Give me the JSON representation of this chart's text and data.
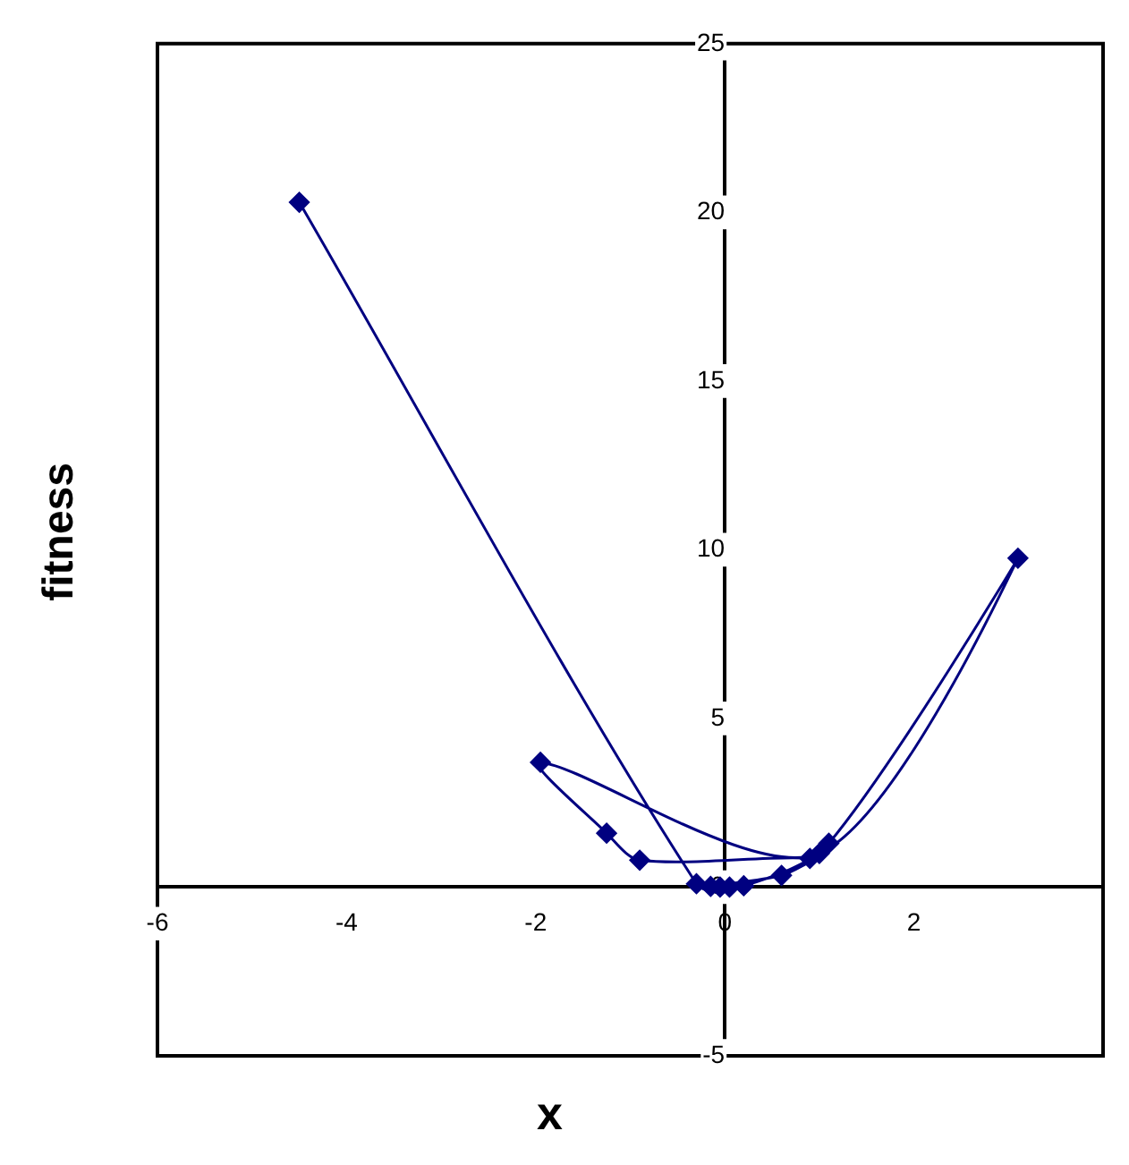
{
  "chart_data": {
    "type": "line",
    "xlabel": "x",
    "ylabel": "fitness",
    "marker": "diamond",
    "legend": false,
    "grid": false,
    "series": [
      {
        "color": "#000080",
        "x": [
          -4.5,
          -0.3,
          0.2,
          1.1,
          3.1,
          1.0,
          -1.95,
          -1.25,
          -0.9,
          0.9,
          0.6,
          -0.15,
          0.05,
          -0.05
        ],
        "values": [
          20.3,
          0.1,
          0.04,
          1.3,
          9.75,
          1.0,
          3.7,
          1.6,
          0.8,
          0.85,
          0.35,
          0.02,
          0.0,
          0.0
        ]
      }
    ],
    "xlim": [
      -6,
      4
    ],
    "xticks": [
      -6,
      -4,
      -2,
      0,
      2
    ],
    "ylim": [
      -5,
      25
    ],
    "yticks": [
      -5,
      0,
      5,
      10,
      15,
      20,
      25
    ]
  }
}
